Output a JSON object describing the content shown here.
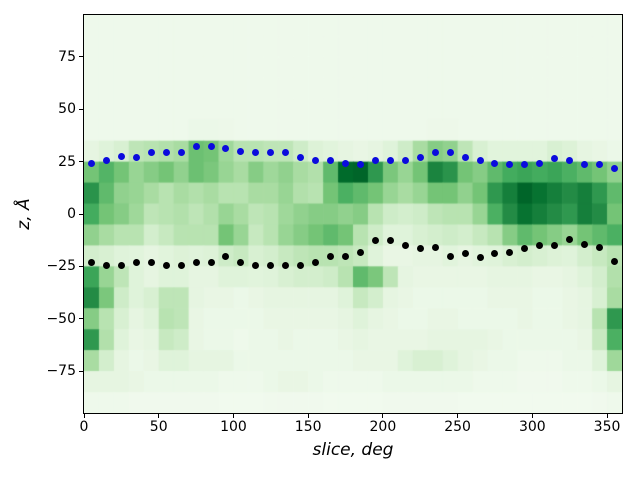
{
  "chart_data": {
    "type": "heatmap",
    "title": "",
    "xlabel": "slice, deg",
    "ylabel": "z, Å",
    "xlim": [
      0,
      360
    ],
    "ylim": [
      -95,
      95
    ],
    "grid": false,
    "legend": null,
    "colors": {
      "figure_bg": "#ffffff",
      "spine": "#000000",
      "text": "#000000"
    },
    "x_ticks": {
      "values": [
        0,
        50,
        100,
        150,
        200,
        250,
        300,
        350
      ],
      "labels": [
        "0",
        "50",
        "100",
        "150",
        "200",
        "250",
        "300",
        "350"
      ]
    },
    "y_ticks": {
      "values": [
        -75,
        -50,
        -25,
        0,
        25,
        50,
        75
      ],
      "labels": [
        "−75",
        "−50",
        "−25",
        "0",
        "25",
        "50",
        "75"
      ]
    },
    "colormap": {
      "name": "Greens",
      "stops": [
        [
          0.0,
          "#f7fcf5"
        ],
        [
          0.125,
          "#e5f5e0"
        ],
        [
          0.25,
          "#c7e9c0"
        ],
        [
          0.375,
          "#a1d99b"
        ],
        [
          0.5,
          "#74c476"
        ],
        [
          0.625,
          "#41ab5d"
        ],
        [
          0.75,
          "#238b45"
        ],
        [
          0.875,
          "#006d2c"
        ],
        [
          1.0,
          "#00441b"
        ]
      ]
    },
    "x_deg": [
      5,
      15,
      25,
      35,
      45,
      55,
      65,
      75,
      85,
      95,
      105,
      115,
      125,
      135,
      145,
      155,
      165,
      175,
      185,
      195,
      205,
      215,
      225,
      235,
      245,
      255,
      265,
      275,
      285,
      295,
      305,
      315,
      325,
      335,
      345,
      355
    ],
    "series": [
      {
        "name": "upper boundary dots",
        "marker": "dot",
        "color": "#0b0bdd",
        "z": [
          24,
          25.5,
          27.5,
          27,
          29.5,
          29.5,
          29.5,
          32,
          32,
          31.5,
          30,
          29.5,
          29.5,
          29.5,
          27,
          25.5,
          25.5,
          24,
          23.5,
          25.5,
          25.5,
          25.5,
          27,
          29.5,
          29.5,
          27,
          25.5,
          24,
          23.5,
          23.5,
          24,
          26.5,
          25.5,
          23.5,
          23.5,
          21.5
        ]
      },
      {
        "name": "lower boundary dots",
        "marker": "dot",
        "color": "#000000",
        "z": [
          -23,
          -24.5,
          -24.5,
          -23,
          -23,
          -24.5,
          -24.5,
          -23,
          -23,
          -20.5,
          -23,
          -24.5,
          -24.5,
          -24.5,
          -24.5,
          -23,
          -20.5,
          -20.5,
          -18.5,
          -12.5,
          -12.5,
          -15,
          -16.5,
          -16,
          -20.5,
          -19,
          -21,
          -19,
          -18.5,
          -16.5,
          -15,
          -15,
          -12,
          -14.5,
          -16,
          -22.5
        ]
      }
    ],
    "heatmap": {
      "x_edges": [
        0,
        10,
        20,
        30,
        40,
        50,
        60,
        70,
        80,
        90,
        100,
        110,
        120,
        130,
        140,
        150,
        160,
        170,
        180,
        190,
        200,
        210,
        220,
        230,
        240,
        250,
        260,
        270,
        280,
        290,
        300,
        310,
        320,
        330,
        340,
        350,
        360
      ],
      "z_edges": [
        95,
        85,
        75,
        65,
        55,
        45,
        35,
        25,
        15,
        5,
        -5,
        -15,
        -25,
        -35,
        -45,
        -55,
        -65,
        -75,
        -85,
        -95
      ],
      "values": [
        [
          0.06,
          0.06,
          0.06,
          0.06,
          0.06,
          0.06,
          0.06,
          0.06,
          0.06,
          0.06,
          0.06,
          0.06,
          0.06,
          0.06,
          0.06,
          0.06,
          0.06,
          0.06,
          0.06,
          0.06,
          0.06,
          0.06,
          0.06,
          0.06,
          0.06,
          0.06,
          0.06,
          0.06,
          0.06,
          0.06,
          0.06,
          0.06,
          0.06,
          0.06,
          0.06,
          0.06
        ],
        [
          0.06,
          0.06,
          0.06,
          0.06,
          0.06,
          0.06,
          0.06,
          0.06,
          0.06,
          0.06,
          0.06,
          0.06,
          0.06,
          0.06,
          0.06,
          0.06,
          0.06,
          0.06,
          0.06,
          0.06,
          0.06,
          0.06,
          0.06,
          0.06,
          0.06,
          0.06,
          0.06,
          0.06,
          0.06,
          0.06,
          0.06,
          0.06,
          0.06,
          0.06,
          0.06,
          0.06
        ],
        [
          0.06,
          0.06,
          0.06,
          0.06,
          0.06,
          0.06,
          0.06,
          0.06,
          0.06,
          0.06,
          0.06,
          0.06,
          0.06,
          0.06,
          0.06,
          0.06,
          0.06,
          0.06,
          0.06,
          0.06,
          0.06,
          0.06,
          0.06,
          0.06,
          0.06,
          0.06,
          0.06,
          0.06,
          0.06,
          0.06,
          0.06,
          0.06,
          0.06,
          0.06,
          0.06,
          0.06
        ],
        [
          0.06,
          0.06,
          0.06,
          0.06,
          0.06,
          0.06,
          0.06,
          0.06,
          0.06,
          0.06,
          0.06,
          0.06,
          0.06,
          0.06,
          0.06,
          0.06,
          0.06,
          0.06,
          0.06,
          0.06,
          0.06,
          0.06,
          0.06,
          0.06,
          0.06,
          0.06,
          0.06,
          0.06,
          0.06,
          0.06,
          0.06,
          0.06,
          0.06,
          0.06,
          0.06,
          0.06
        ],
        [
          0.06,
          0.06,
          0.06,
          0.06,
          0.06,
          0.06,
          0.06,
          0.06,
          0.06,
          0.06,
          0.06,
          0.06,
          0.06,
          0.06,
          0.06,
          0.06,
          0.06,
          0.06,
          0.06,
          0.06,
          0.06,
          0.06,
          0.06,
          0.06,
          0.06,
          0.06,
          0.06,
          0.06,
          0.06,
          0.06,
          0.06,
          0.06,
          0.06,
          0.06,
          0.06,
          0.06
        ],
        [
          0.06,
          0.06,
          0.06,
          0.06,
          0.06,
          0.06,
          0.06,
          0.08,
          0.08,
          0.07,
          0.06,
          0.06,
          0.06,
          0.06,
          0.06,
          0.06,
          0.06,
          0.06,
          0.06,
          0.06,
          0.06,
          0.06,
          0.06,
          0.07,
          0.07,
          0.06,
          0.06,
          0.06,
          0.06,
          0.06,
          0.06,
          0.06,
          0.06,
          0.06,
          0.06,
          0.06
        ],
        [
          0.12,
          0.15,
          0.18,
          0.28,
          0.3,
          0.32,
          0.35,
          0.52,
          0.5,
          0.38,
          0.3,
          0.3,
          0.28,
          0.28,
          0.22,
          0.16,
          0.14,
          0.12,
          0.1,
          0.12,
          0.15,
          0.22,
          0.35,
          0.45,
          0.42,
          0.28,
          0.18,
          0.14,
          0.14,
          0.14,
          0.14,
          0.18,
          0.16,
          0.12,
          0.1,
          0.08
        ],
        [
          0.5,
          0.58,
          0.5,
          0.4,
          0.45,
          0.5,
          0.42,
          0.52,
          0.48,
          0.4,
          0.35,
          0.45,
          0.38,
          0.42,
          0.35,
          0.32,
          0.55,
          0.88,
          0.9,
          0.7,
          0.48,
          0.4,
          0.5,
          0.78,
          0.72,
          0.5,
          0.45,
          0.55,
          0.62,
          0.65,
          0.62,
          0.65,
          0.6,
          0.55,
          0.5,
          0.42
        ],
        [
          0.72,
          0.55,
          0.42,
          0.4,
          0.35,
          0.3,
          0.35,
          0.32,
          0.35,
          0.3,
          0.3,
          0.35,
          0.35,
          0.4,
          0.32,
          0.3,
          0.5,
          0.6,
          0.55,
          0.5,
          0.4,
          0.35,
          0.4,
          0.5,
          0.5,
          0.42,
          0.5,
          0.7,
          0.8,
          0.9,
          0.85,
          0.8,
          0.75,
          0.8,
          0.7,
          0.55
        ],
        [
          0.62,
          0.5,
          0.45,
          0.38,
          0.28,
          0.3,
          0.32,
          0.28,
          0.32,
          0.4,
          0.35,
          0.28,
          0.3,
          0.38,
          0.42,
          0.45,
          0.45,
          0.42,
          0.45,
          0.3,
          0.22,
          0.2,
          0.22,
          0.28,
          0.3,
          0.3,
          0.4,
          0.6,
          0.75,
          0.85,
          0.8,
          0.75,
          0.7,
          0.8,
          0.75,
          0.5
        ],
        [
          0.42,
          0.35,
          0.3,
          0.3,
          0.2,
          0.25,
          0.3,
          0.3,
          0.3,
          0.5,
          0.4,
          0.25,
          0.3,
          0.4,
          0.45,
          0.5,
          0.55,
          0.5,
          0.3,
          0.22,
          0.15,
          0.15,
          0.18,
          0.2,
          0.22,
          0.2,
          0.25,
          0.3,
          0.45,
          0.55,
          0.5,
          0.45,
          0.4,
          0.5,
          0.55,
          0.6
        ],
        [
          0.2,
          0.18,
          0.15,
          0.14,
          0.12,
          0.14,
          0.16,
          0.15,
          0.16,
          0.22,
          0.25,
          0.18,
          0.2,
          0.25,
          0.28,
          0.3,
          0.3,
          0.28,
          0.25,
          0.15,
          0.1,
          0.1,
          0.12,
          0.12,
          0.14,
          0.12,
          0.14,
          0.15,
          0.18,
          0.2,
          0.18,
          0.16,
          0.15,
          0.2,
          0.25,
          0.3
        ],
        [
          0.65,
          0.4,
          0.28,
          0.15,
          0.12,
          0.15,
          0.15,
          0.12,
          0.12,
          0.15,
          0.15,
          0.14,
          0.15,
          0.18,
          0.2,
          0.2,
          0.22,
          0.3,
          0.55,
          0.48,
          0.28,
          0.12,
          0.1,
          0.1,
          0.1,
          0.1,
          0.1,
          0.12,
          0.12,
          0.12,
          0.1,
          0.1,
          0.12,
          0.15,
          0.2,
          0.32
        ],
        [
          0.75,
          0.48,
          0.22,
          0.15,
          0.18,
          0.28,
          0.28,
          0.12,
          0.1,
          0.1,
          0.08,
          0.1,
          0.12,
          0.12,
          0.12,
          0.12,
          0.12,
          0.15,
          0.25,
          0.2,
          0.12,
          0.1,
          0.08,
          0.08,
          0.08,
          0.08,
          0.08,
          0.1,
          0.1,
          0.1,
          0.08,
          0.08,
          0.1,
          0.12,
          0.18,
          0.35
        ],
        [
          0.45,
          0.3,
          0.18,
          0.12,
          0.15,
          0.3,
          0.28,
          0.1,
          0.08,
          0.08,
          0.08,
          0.08,
          0.1,
          0.1,
          0.1,
          0.1,
          0.1,
          0.12,
          0.15,
          0.12,
          0.1,
          0.08,
          0.08,
          0.1,
          0.1,
          0.08,
          0.08,
          0.08,
          0.08,
          0.1,
          0.08,
          0.08,
          0.1,
          0.12,
          0.3,
          0.7
        ],
        [
          0.7,
          0.32,
          0.15,
          0.1,
          0.12,
          0.25,
          0.22,
          0.1,
          0.08,
          0.08,
          0.06,
          0.08,
          0.08,
          0.1,
          0.08,
          0.08,
          0.08,
          0.1,
          0.12,
          0.1,
          0.1,
          0.1,
          0.1,
          0.12,
          0.12,
          0.12,
          0.12,
          0.1,
          0.08,
          0.08,
          0.08,
          0.08,
          0.08,
          0.1,
          0.25,
          0.6
        ],
        [
          0.35,
          0.2,
          0.12,
          0.08,
          0.1,
          0.15,
          0.15,
          0.12,
          0.12,
          0.12,
          0.08,
          0.08,
          0.08,
          0.08,
          0.08,
          0.08,
          0.08,
          0.08,
          0.1,
          0.1,
          0.1,
          0.15,
          0.18,
          0.18,
          0.15,
          0.12,
          0.1,
          0.08,
          0.08,
          0.06,
          0.06,
          0.06,
          0.08,
          0.08,
          0.15,
          0.38
        ],
        [
          0.12,
          0.12,
          0.12,
          0.1,
          0.08,
          0.08,
          0.08,
          0.08,
          0.08,
          0.06,
          0.06,
          0.06,
          0.08,
          0.1,
          0.1,
          0.08,
          0.06,
          0.06,
          0.06,
          0.06,
          0.08,
          0.08,
          0.08,
          0.08,
          0.08,
          0.08,
          0.06,
          0.06,
          0.06,
          0.05,
          0.05,
          0.05,
          0.06,
          0.06,
          0.08,
          0.12
        ],
        [
          0.06,
          0.06,
          0.06,
          0.05,
          0.05,
          0.05,
          0.05,
          0.05,
          0.05,
          0.04,
          0.04,
          0.04,
          0.05,
          0.05,
          0.05,
          0.05,
          0.04,
          0.04,
          0.04,
          0.04,
          0.05,
          0.05,
          0.05,
          0.05,
          0.05,
          0.04,
          0.04,
          0.04,
          0.04,
          0.04,
          0.04,
          0.04,
          0.04,
          0.04,
          0.05,
          0.06
        ]
      ]
    }
  }
}
